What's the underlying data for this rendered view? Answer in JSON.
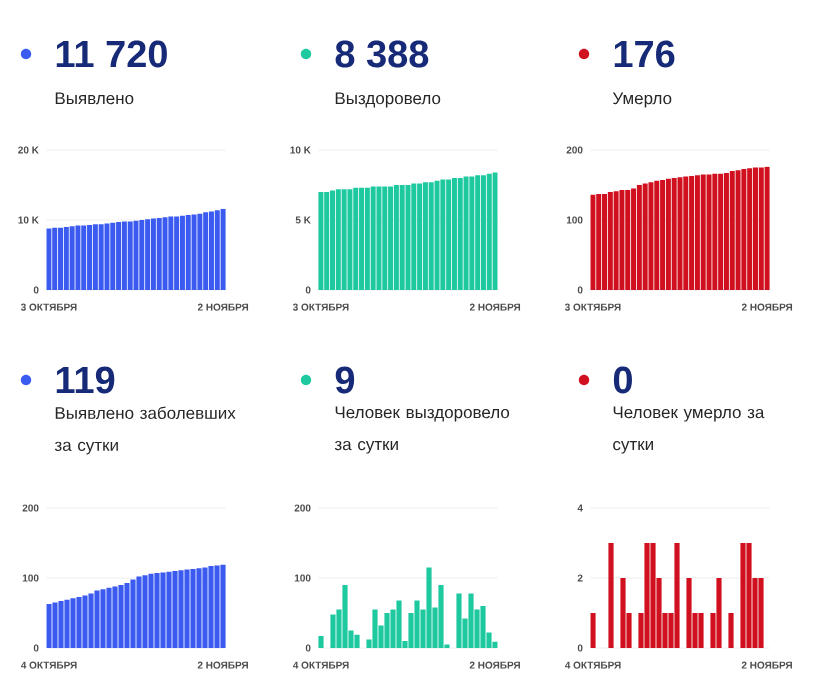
{
  "chart_data": [
    {
      "type": "bar",
      "title": "11 720",
      "subtitle": "Выявлено",
      "color": "#3b5bf0",
      "grid": "y",
      "ylim": [
        0,
        20000
      ],
      "yticks": [
        0,
        {
          "value": 10000,
          "label": "10 K"
        },
        {
          "value": 20000,
          "label": "20 K"
        }
      ],
      "categories": [
        "3 ОКТЯБРЯ",
        null,
        null,
        null,
        null,
        null,
        null,
        null,
        null,
        null,
        null,
        null,
        null,
        null,
        null,
        null,
        null,
        null,
        null,
        null,
        null,
        null,
        null,
        null,
        null,
        null,
        null,
        null,
        null,
        null,
        "2 НОЯБРЯ"
      ],
      "values": [
        8800,
        8900,
        8900,
        9000,
        9100,
        9200,
        9200,
        9300,
        9400,
        9400,
        9500,
        9600,
        9700,
        9800,
        9800,
        9900,
        10000,
        10100,
        10200,
        10300,
        10400,
        10500,
        10500,
        10600,
        10700,
        10800,
        10900,
        11100,
        11200,
        11400,
        11600
      ]
    },
    {
      "type": "bar",
      "title": "8 388",
      "subtitle": "Выздоровело",
      "color": "#1ec9a0",
      "grid": "y",
      "ylim": [
        0,
        10000
      ],
      "yticks": [
        0,
        {
          "value": 5000,
          "label": "5 K"
        },
        {
          "value": 10000,
          "label": "10 K"
        }
      ],
      "categories": [
        "3 ОКТЯБРЯ",
        null,
        null,
        null,
        null,
        null,
        null,
        null,
        null,
        null,
        null,
        null,
        null,
        null,
        null,
        null,
        null,
        null,
        null,
        null,
        null,
        null,
        null,
        null,
        null,
        null,
        null,
        null,
        null,
        null,
        "2 НОЯБРЯ"
      ],
      "values": [
        7000,
        7000,
        7100,
        7200,
        7200,
        7200,
        7300,
        7300,
        7300,
        7400,
        7400,
        7400,
        7400,
        7500,
        7500,
        7500,
        7600,
        7600,
        7700,
        7700,
        7800,
        7900,
        7900,
        8000,
        8000,
        8100,
        8100,
        8200,
        8200,
        8300,
        8400
      ]
    },
    {
      "type": "bar",
      "title": "176",
      "subtitle": "Умерло",
      "color": "#d0101e",
      "grid": "y",
      "ylim": [
        0,
        200
      ],
      "yticks": [
        0,
        100,
        200
      ],
      "categories": [
        "3 ОКТЯБРЯ",
        null,
        null,
        null,
        null,
        null,
        null,
        null,
        null,
        null,
        null,
        null,
        null,
        null,
        null,
        null,
        null,
        null,
        null,
        null,
        null,
        null,
        null,
        null,
        null,
        null,
        null,
        null,
        null,
        null,
        "2 НОЯБРЯ"
      ],
      "values": [
        136,
        137,
        137,
        140,
        141,
        143,
        143,
        145,
        150,
        152,
        154,
        156,
        157,
        159,
        160,
        161,
        162,
        163,
        164,
        165,
        165,
        166,
        166,
        167,
        170,
        171,
        173,
        174,
        175,
        175,
        176
      ]
    },
    {
      "type": "bar",
      "title": "119",
      "subtitle": "Выявлено заболевших за сутки",
      "color": "#3b5bf0",
      "grid": "y",
      "ylim": [
        0,
        200
      ],
      "yticks": [
        0,
        100,
        200
      ],
      "categories": [
        "4 ОКТЯБРЯ",
        null,
        null,
        null,
        null,
        null,
        null,
        null,
        null,
        null,
        null,
        null,
        null,
        null,
        null,
        null,
        null,
        null,
        null,
        null,
        null,
        null,
        null,
        null,
        null,
        null,
        null,
        null,
        null,
        "2 НОЯБРЯ"
      ],
      "values": [
        63,
        65,
        67,
        69,
        71,
        73,
        75,
        78,
        82,
        84,
        86,
        88,
        90,
        93,
        98,
        102,
        104,
        106,
        107,
        108,
        109,
        110,
        111,
        112,
        113,
        114,
        115,
        117,
        118,
        119
      ]
    },
    {
      "type": "bar",
      "title": "9",
      "subtitle": "Человек выздоровело за сутки",
      "color": "#1ec9a0",
      "grid": "y",
      "ylim": [
        0,
        200
      ],
      "yticks": [
        0,
        100,
        200
      ],
      "categories": [
        "4 ОКТЯБРЯ",
        null,
        null,
        null,
        null,
        null,
        null,
        null,
        null,
        null,
        null,
        null,
        null,
        null,
        null,
        null,
        null,
        null,
        null,
        null,
        null,
        null,
        null,
        null,
        null,
        null,
        null,
        null,
        null,
        "2 НОЯБРЯ"
      ],
      "values": [
        17,
        0,
        48,
        55,
        90,
        25,
        19,
        0,
        12,
        55,
        32,
        50,
        55,
        68,
        10,
        50,
        68,
        55,
        115,
        58,
        90,
        5,
        0,
        78,
        42,
        78,
        55,
        60,
        22,
        9
      ]
    },
    {
      "type": "bar",
      "title": "0",
      "subtitle": "Человек умерло за сутки",
      "color": "#d0101e",
      "grid": "y",
      "ylim": [
        0,
        4
      ],
      "yticks": [
        0,
        2,
        4
      ],
      "categories": [
        "4 ОКТЯБРЯ",
        null,
        null,
        null,
        null,
        null,
        null,
        null,
        null,
        null,
        null,
        null,
        null,
        null,
        null,
        null,
        null,
        null,
        null,
        null,
        null,
        null,
        null,
        null,
        null,
        null,
        null,
        null,
        null,
        "2 НОЯБРЯ"
      ],
      "values": [
        1,
        0,
        0,
        3,
        0,
        2,
        1,
        0,
        1,
        3,
        3,
        2,
        1,
        1,
        3,
        0,
        2,
        1,
        1,
        0,
        1,
        2,
        0,
        1,
        0,
        3,
        3,
        2,
        2,
        0
      ]
    }
  ]
}
